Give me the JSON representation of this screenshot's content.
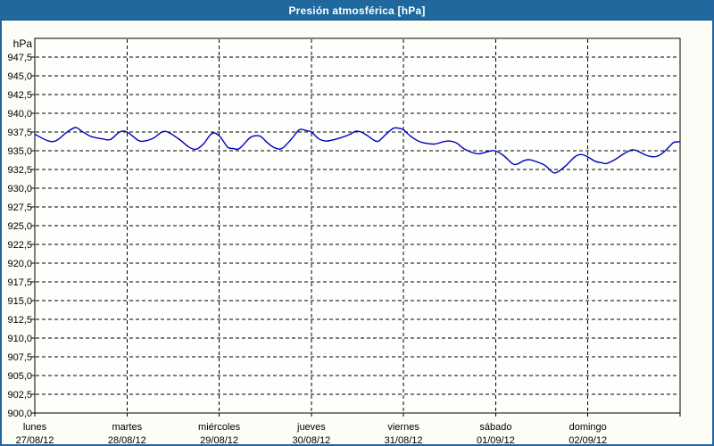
{
  "window": {
    "title": "Presión atmosférica [hPa]"
  },
  "colors": {
    "titlebar_bg": "#1e699e",
    "titlebar_edge": "#0e4e7e",
    "outer_border": "#24649e",
    "page_bg": "#fcfdf7",
    "plot_bg": "#fefefc",
    "grid": "#000000",
    "axis": "#000000",
    "line": "#0000bb",
    "title_text": "#ffffff",
    "label_text": "#000000"
  },
  "chart_data": {
    "type": "line",
    "title": "Presión atmosférica [hPa]",
    "ylabel": "hPa",
    "xlabel": "",
    "xlim": [
      0,
      7
    ],
    "ylim": [
      900,
      950
    ],
    "grid": true,
    "legend": "none",
    "ytick_values": [
      947.5,
      945,
      942.5,
      940,
      937.5,
      935,
      932.5,
      930,
      927.5,
      925,
      922.5,
      920,
      917.5,
      915,
      912.5,
      910,
      907.5,
      905,
      902.5,
      900
    ],
    "ytick_labels": [
      "947,5",
      "945,0",
      "942,5",
      "940,0",
      "937,5",
      "935,0",
      "932,5",
      "930,0",
      "927,5",
      "925,0",
      "922,5",
      "920,0",
      "917,5",
      "915,0",
      "912,5",
      "910,0",
      "907,5",
      "905,0",
      "902,5",
      "900,0"
    ],
    "days": [
      {
        "name": "lunes",
        "date": "27/08/12"
      },
      {
        "name": "martes",
        "date": "28/08/12"
      },
      {
        "name": "miércoles",
        "date": "29/08/12"
      },
      {
        "name": "jueves",
        "date": "30/08/12"
      },
      {
        "name": "viernes",
        "date": "31/08/12"
      },
      {
        "name": "sábado",
        "date": "01/09/12"
      },
      {
        "name": "domingo",
        "date": "02/09/12"
      }
    ],
    "series": [
      {
        "name": "Presión atmosférica",
        "color": "#0000bb",
        "x": [
          0.0,
          0.15,
          0.24,
          0.34,
          0.44,
          0.51,
          0.61,
          0.73,
          0.82,
          0.92,
          1.0,
          1.12,
          1.19,
          1.29,
          1.41,
          1.56,
          1.67,
          1.75,
          1.83,
          1.92,
          2.0,
          2.09,
          2.15,
          2.22,
          2.33,
          2.39,
          2.45,
          2.53,
          2.6,
          2.68,
          2.78,
          2.87,
          2.94,
          3.0,
          3.08,
          3.15,
          3.22,
          3.31,
          3.42,
          3.48,
          3.54,
          3.61,
          3.68,
          3.73,
          3.81,
          3.89,
          3.95,
          4.0,
          4.07,
          4.16,
          4.24,
          4.34,
          4.43,
          4.5,
          4.58,
          4.65,
          4.74,
          4.82,
          4.92,
          4.99,
          5.08,
          5.18,
          5.23,
          5.31,
          5.37,
          5.47,
          5.54,
          5.61,
          5.66,
          5.76,
          5.86,
          5.92,
          5.98,
          6.08,
          6.15,
          6.2,
          6.29,
          6.39,
          6.47,
          6.53,
          6.63,
          6.7,
          6.76,
          6.82,
          6.88,
          6.93,
          6.99
        ],
        "y": [
          937.2,
          936.3,
          936.4,
          937.4,
          938.1,
          937.6,
          936.9,
          936.6,
          936.5,
          937.5,
          937.5,
          936.4,
          936.3,
          936.7,
          937.6,
          936.6,
          935.5,
          935.2,
          935.9,
          937.3,
          937.0,
          935.5,
          935.3,
          935.3,
          936.7,
          937.0,
          936.9,
          936.0,
          935.4,
          935.3,
          936.5,
          937.8,
          937.7,
          937.5,
          936.6,
          936.3,
          936.4,
          936.7,
          937.2,
          937.6,
          937.5,
          937.0,
          936.4,
          936.3,
          937.2,
          938.0,
          938.0,
          937.8,
          937.0,
          936.3,
          936.0,
          935.9,
          936.2,
          936.3,
          936.0,
          935.3,
          934.8,
          934.6,
          934.9,
          935.0,
          934.4,
          933.3,
          933.2,
          933.7,
          933.8,
          933.4,
          933.0,
          932.2,
          932.1,
          933.0,
          934.2,
          934.5,
          934.3,
          933.6,
          933.4,
          933.3,
          933.8,
          934.6,
          935.1,
          935.0,
          934.4,
          934.2,
          934.3,
          934.8,
          935.5,
          936.1,
          936.2
        ]
      }
    ]
  }
}
